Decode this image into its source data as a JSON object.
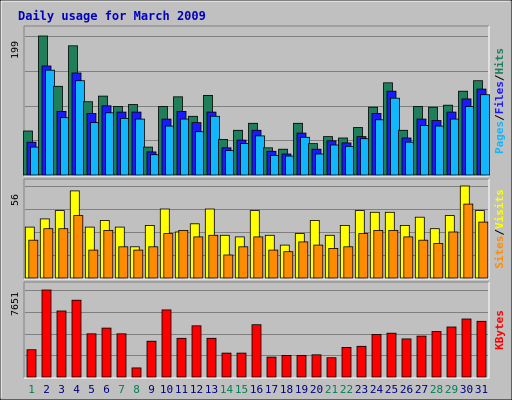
{
  "chart_data": {
    "type": "bar",
    "title": "Daily usage for March 2009",
    "categories": [
      "1",
      "2",
      "3",
      "4",
      "5",
      "6",
      "7",
      "8",
      "9",
      "10",
      "11",
      "12",
      "13",
      "14",
      "15",
      "16",
      "17",
      "18",
      "19",
      "20",
      "21",
      "22",
      "23",
      "24",
      "25",
      "26",
      "27",
      "28",
      "29",
      "30",
      "31"
    ],
    "weekend_days": [
      "1",
      "7",
      "8",
      "14",
      "15",
      "21",
      "22",
      "28",
      "29"
    ],
    "panels": [
      {
        "name": "hits-files-pages",
        "max_label": "199",
        "ylim": [
          0,
          199
        ],
        "legend": [
          "Pages",
          "Files",
          "Hits"
        ],
        "series": [
          {
            "name": "Hits",
            "color": "#1f7f5a",
            "values": [
              63,
              199,
              127,
              185,
              105,
              113,
              98,
              101,
              40,
              98,
              112,
              84,
              114,
              51,
              64,
              74,
              39,
              37,
              74,
              45,
              55,
              53,
              68,
              97,
              132,
              64,
              98,
              97,
              100,
              120,
              135
            ]
          },
          {
            "name": "Files",
            "color": "#1a1aff",
            "values": [
              47,
              156,
              91,
              146,
              88,
              99,
              90,
              90,
              33,
              80,
              91,
              75,
              90,
              39,
              50,
              64,
              34,
              30,
              60,
              37,
              49,
              46,
              55,
              88,
              120,
              53,
              80,
              78,
              90,
              109,
              123
            ]
          },
          {
            "name": "Pages",
            "color": "#12b6ff",
            "values": [
              40,
              150,
              82,
              135,
              75,
              89,
              81,
              80,
              29,
              70,
              80,
              62,
              84,
              35,
              45,
              56,
              28,
              27,
              54,
              30,
              43,
              41,
              52,
              79,
              110,
              47,
              71,
              70,
              80,
              98,
              115
            ]
          }
        ]
      },
      {
        "name": "visits-sites",
        "max_label": "56",
        "ylim": [
          0,
          56
        ],
        "legend": [
          "Sites",
          "Visits"
        ],
        "series": [
          {
            "name": "Visits",
            "color": "#ffff00",
            "values": [
              31,
              36,
              41,
              53,
              31,
              35,
              31,
              19,
              32,
              42,
              28,
              33,
              42,
              26,
              25,
              41,
              26,
              20,
              27,
              35,
              26,
              32,
              41,
              40,
              40,
              32,
              37,
              30,
              38,
              56,
              41
            ]
          },
          {
            "name": "Sites",
            "color": "#ff8c00",
            "values": [
              23,
              30,
              30,
              38,
              17,
              29,
              19,
              17,
              19,
              27,
              29,
              25,
              26,
              14,
              19,
              25,
              17,
              16,
              22,
              20,
              18,
              19,
              27,
              29,
              29,
              25,
              23,
              21,
              28,
              45,
              34
            ]
          }
        ]
      },
      {
        "name": "kbytes",
        "max_label": "7651",
        "ylim": [
          0,
          7651
        ],
        "legend": [
          "KBytes"
        ],
        "series": [
          {
            "name": "KBytes",
            "color": "#ff0000",
            "values": [
              2400,
              7651,
              5800,
              6750,
              3800,
              4300,
              3800,
              800,
              3150,
              5900,
              3400,
              4500,
              3400,
              2100,
              2100,
              4600,
              1750,
              1900,
              1900,
              1950,
              1700,
              2600,
              2700,
              3750,
              3850,
              3350,
              3600,
              4000,
              4400,
              5100,
              4900
            ]
          }
        ]
      }
    ]
  }
}
